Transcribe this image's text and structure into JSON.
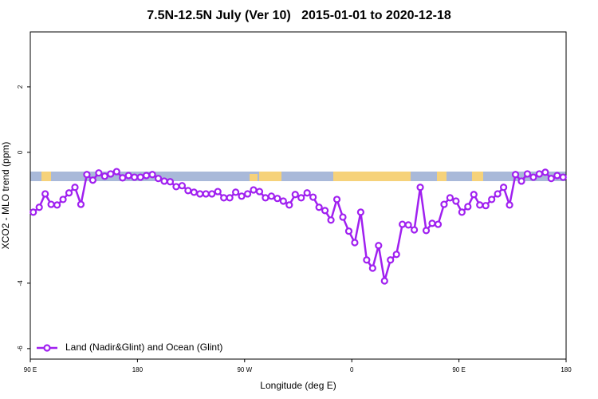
{
  "chart_data": {
    "type": "line",
    "title": "7.5N-12.5N July (Ver 10)   2015-01-01 to 2020-12-18",
    "xlabel": "Longitude (deg E)",
    "ylabel": "XCO2 - MLO trend (ppm)",
    "xlim": [
      90,
      540
    ],
    "xticks": [
      {
        "value": 90,
        "label": "90 E"
      },
      180,
      {
        "value": 270,
        "label": "90 W"
      },
      {
        "value": 360,
        "label": "0"
      },
      {
        "value": 450,
        "label": "90 E"
      },
      {
        "value": 540,
        "label": "180"
      }
    ],
    "ylim": [
      -6.32,
      3.68
    ],
    "yticks": [
      -6,
      -4,
      0,
      2
    ],
    "legend": "lower left",
    "x": [
      92.5,
      97.5,
      102.5,
      107.5,
      112.5,
      117.5,
      122.5,
      127.5,
      132.5,
      137.5,
      142.5,
      147.5,
      152.5,
      157.5,
      162.5,
      167.5,
      172.5,
      177.5,
      182.5,
      187.5,
      192.5,
      197.5,
      202.5,
      207.5,
      212.5,
      217.5,
      222.5,
      227.5,
      232.5,
      237.5,
      242.5,
      247.5,
      252.5,
      257.5,
      262.5,
      267.5,
      272.5,
      277.5,
      282.5,
      287.5,
      292.5,
      297.5,
      302.5,
      307.5,
      312.5,
      317.5,
      322.5,
      327.5,
      332.5,
      337.5,
      342.5,
      347.5,
      352.5,
      357.5,
      362.5,
      367.5,
      372.5,
      377.5,
      382.5,
      387.5,
      392.5,
      397.5,
      402.5,
      407.5,
      412.5,
      417.5,
      422.5,
      427.5,
      432.5,
      437.5,
      442.5,
      447.5,
      452.5,
      457.5,
      462.5,
      467.5,
      472.5,
      477.5,
      482.5,
      487.5,
      492.5,
      497.5,
      502.5,
      507.5,
      512.5,
      517.5,
      522.5,
      527.5,
      532.5,
      537.5
    ],
    "series": [
      {
        "name": "Land (Nadir&Glint) and Ocean (Glint)",
        "color": "#a020f0",
        "values": [
          -1.83,
          -1.68,
          -1.27,
          -1.59,
          -1.61,
          -1.44,
          -1.24,
          -1.07,
          -1.59,
          -0.68,
          -0.85,
          -0.63,
          -0.73,
          -0.66,
          -0.59,
          -0.78,
          -0.71,
          -0.76,
          -0.76,
          -0.71,
          -0.68,
          -0.8,
          -0.88,
          -0.9,
          -1.05,
          -1.02,
          -1.17,
          -1.22,
          -1.27,
          -1.27,
          -1.27,
          -1.2,
          -1.39,
          -1.39,
          -1.22,
          -1.34,
          -1.27,
          -1.15,
          -1.2,
          -1.39,
          -1.34,
          -1.41,
          -1.49,
          -1.61,
          -1.29,
          -1.39,
          -1.24,
          -1.37,
          -1.68,
          -1.78,
          -2.07,
          -1.44,
          -1.98,
          -2.41,
          -2.76,
          -1.83,
          -3.29,
          -3.54,
          -2.85,
          -3.93,
          -3.29,
          -3.12,
          -2.2,
          -2.22,
          -2.37,
          -1.07,
          -2.39,
          -2.17,
          -2.2,
          -1.59,
          -1.39,
          -1.49,
          -1.83,
          -1.66,
          -1.29,
          -1.61,
          -1.63,
          -1.44,
          -1.27,
          -1.07,
          -1.61,
          -0.68,
          -0.88,
          -0.66,
          -0.76,
          -0.66,
          -0.61,
          -0.8,
          -0.71,
          -0.76
        ]
      }
    ]
  }
}
